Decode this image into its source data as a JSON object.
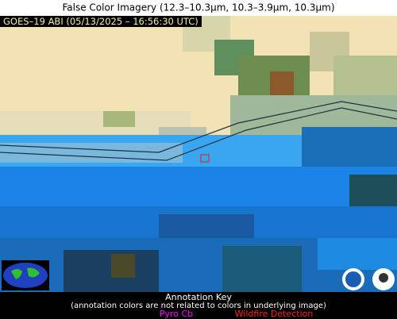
{
  "title": "False Color Imagery (12.3–10.3µm, 10.3–3.9µm, 10.3µm)",
  "overlay": "GOES–19 ABI (05/13/2025 – 16:56:30 UTC)",
  "key": {
    "title": "Annotation Key",
    "note": "(annotation colors are not related to colors in underlying image)",
    "items": [
      "Pyro Cb",
      "Wildfire Detection"
    ]
  }
}
